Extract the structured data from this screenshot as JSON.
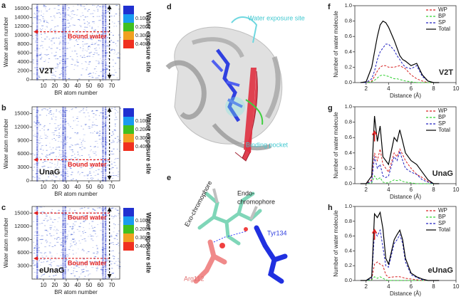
{
  "chart_data": [
    {
      "type": "heatmap",
      "label": "a",
      "name": "V2T",
      "xlabel": "BR atom number",
      "ylabel": "Water atom number",
      "xlim": [
        0,
        77
      ],
      "xticks": [
        10,
        20,
        30,
        40,
        50,
        60,
        70
      ],
      "ylim": [
        0,
        17000
      ],
      "yticks": [
        0,
        2000,
        4000,
        6000,
        8000,
        10000,
        12000,
        14000,
        16000
      ],
      "colorbar": {
        "labels": [
          "0.1000",
          "0.2000",
          "0.3000",
          "0.4000"
        ],
        "colors": [
          "#2030d0",
          "#1a9cf0",
          "#40c020",
          "#f0a020",
          "#f03020"
        ]
      },
      "bound_water": [
        {
          "label": "Bound water",
          "y": 10800
        }
      ],
      "exposure": {
        "label": "Water exposure site",
        "x": 68
      }
    },
    {
      "type": "heatmap",
      "label": "b",
      "name": "UnaG",
      "xlabel": "BR atom number",
      "ylabel": "Water atom number",
      "xlim": [
        0,
        77
      ],
      "xticks": [
        10,
        20,
        30,
        40,
        50,
        60,
        70
      ],
      "ylim": [
        0,
        16500
      ],
      "yticks": [
        0,
        3000,
        6000,
        9000,
        12000,
        15000
      ],
      "colorbar": {
        "labels": [
          "0.1000",
          "0.2000",
          "0.3000",
          "0.4000"
        ],
        "colors": [
          "#2030d0",
          "#1a9cf0",
          "#40c020",
          "#f0a020",
          "#f03020"
        ]
      },
      "bound_water": [
        {
          "label": "Bound water",
          "y": 4700
        }
      ],
      "exposure": {
        "label": "Water exposure site",
        "x": 68
      }
    },
    {
      "type": "heatmap",
      "label": "c",
      "name": "eUnaG",
      "xlabel": "BR atom number",
      "ylabel": "Water atom number",
      "xlim": [
        0,
        77
      ],
      "xticks": [
        10,
        20,
        30,
        40,
        50,
        60,
        70
      ],
      "ylim": [
        0,
        16500
      ],
      "yticks": [
        3000,
        6000,
        9000,
        12000,
        15000
      ],
      "colorbar": {
        "labels": [
          "0.1000",
          "0.2000",
          "0.3000",
          "0.4000"
        ],
        "colors": [
          "#2030d0",
          "#1a9cf0",
          "#40c020",
          "#f0a020",
          "#f03020"
        ]
      },
      "bound_water": [
        {
          "label": "Bound water",
          "y": 15000
        },
        {
          "label": "Bound water",
          "y": 4700
        }
      ],
      "exposure": {
        "label": "Water exposure site",
        "x": 68
      }
    },
    {
      "type": "line",
      "label": "f",
      "name": "V2T",
      "xlabel": "Distance (Å)",
      "ylabel": "Number of water molecule",
      "xlim": [
        1,
        10
      ],
      "xticks": [
        2,
        4,
        6,
        8,
        10
      ],
      "ylim": [
        0,
        1
      ],
      "yticks": [
        {
          "value": 0,
          "label": "0.0"
        },
        0.2,
        0.4,
        0.6,
        0.8,
        {
          "value": 1,
          "label": "1.0"
        }
      ],
      "x": [
        1.5,
        2,
        2.5,
        2.75,
        3,
        3.25,
        3.5,
        3.75,
        4,
        4.5,
        4.75,
        5,
        5.25,
        5.5,
        6,
        6.5,
        7,
        7.5,
        8,
        8.5
      ],
      "series": [
        {
          "name": "WP",
          "color": "#d62020",
          "values": [
            0,
            0,
            0.02,
            0.08,
            0.15,
            0.2,
            0.22,
            0.22,
            0.2,
            0.2,
            0.21,
            0.22,
            0.2,
            0.18,
            0.1,
            0.05,
            0.02,
            0,
            0,
            0
          ]
        },
        {
          "name": "BP",
          "color": "#30d030",
          "values": [
            0,
            0,
            0.01,
            0.03,
            0.06,
            0.09,
            0.1,
            0.09,
            0.08,
            0.05,
            0.05,
            0.04,
            0.03,
            0.02,
            0.01,
            0,
            0,
            0,
            0,
            0
          ]
        },
        {
          "name": "SP",
          "color": "#2020c0",
          "values": [
            0,
            0,
            0.05,
            0.15,
            0.3,
            0.4,
            0.45,
            0.5,
            0.5,
            0.42,
            0.35,
            0.3,
            0.24,
            0.2,
            0.18,
            0.22,
            0.08,
            0.02,
            0,
            0
          ]
        },
        {
          "name": "Total",
          "color": "#000000",
          "values": [
            0,
            0.01,
            0.2,
            0.4,
            0.6,
            0.75,
            0.8,
            0.78,
            0.72,
            0.55,
            0.45,
            0.35,
            0.3,
            0.28,
            0.22,
            0.25,
            0.1,
            0.02,
            0,
            0
          ]
        }
      ]
    },
    {
      "type": "line",
      "label": "g",
      "name": "UnaG",
      "xlabel": "Distance (Å)",
      "ylabel": "Number of water molecule",
      "xlim": [
        1,
        10
      ],
      "xticks": [
        2,
        4,
        6,
        8,
        10
      ],
      "ylim": [
        0,
        1
      ],
      "yticks": [
        {
          "value": 0,
          "label": "0.0"
        },
        0.2,
        0.4,
        0.6,
        0.8,
        {
          "value": 1,
          "label": "1.0"
        }
      ],
      "x": [
        1.5,
        2,
        2.5,
        2.75,
        3,
        3.25,
        3.5,
        3.75,
        4,
        4.5,
        4.75,
        5,
        5.25,
        5.5,
        6,
        6.5,
        7,
        7.5,
        8,
        8.5
      ],
      "series": [
        {
          "name": "WP",
          "color": "#d62020",
          "values": [
            0,
            0,
            0.05,
            0.4,
            0.3,
            0.45,
            0.25,
            0.2,
            0.15,
            0.4,
            0.35,
            0.45,
            0.38,
            0.3,
            0.2,
            0.12,
            0.08,
            0.03,
            0,
            0
          ]
        },
        {
          "name": "BP",
          "color": "#30d030",
          "values": [
            0,
            0,
            0.01,
            0.1,
            0.05,
            0.08,
            0.02,
            0.01,
            0.01,
            0.05,
            0.04,
            0.05,
            0.03,
            0.02,
            0.01,
            0,
            0,
            0,
            0,
            0
          ]
        },
        {
          "name": "SP",
          "color": "#2020c0",
          "values": [
            0,
            0,
            0.03,
            0.35,
            0.2,
            0.25,
            0.1,
            0.08,
            0.1,
            0.35,
            0.3,
            0.42,
            0.3,
            0.2,
            0.15,
            0.12,
            0.05,
            0.02,
            0,
            0
          ]
        },
        {
          "name": "Total",
          "color": "#000000",
          "values": [
            0,
            0,
            0.1,
            0.88,
            0.55,
            0.75,
            0.35,
            0.3,
            0.25,
            0.6,
            0.55,
            0.7,
            0.55,
            0.4,
            0.3,
            0.25,
            0.15,
            0.05,
            0,
            0
          ]
        }
      ]
    },
    {
      "type": "line",
      "label": "h",
      "name": "eUnaG",
      "xlabel": "Distance (Å)",
      "ylabel": "Number of water molecule",
      "xlim": [
        1,
        10
      ],
      "xticks": [
        2,
        4,
        6,
        8,
        10
      ],
      "ylim": [
        0,
        1
      ],
      "yticks": [
        {
          "value": 0,
          "label": "0.0"
        },
        0.2,
        0.4,
        0.6,
        0.8,
        {
          "value": 1,
          "label": "1.0"
        }
      ],
      "x": [
        1.5,
        2,
        2.5,
        2.75,
        3,
        3.25,
        3.5,
        3.75,
        4,
        4.5,
        4.75,
        5,
        5.25,
        5.5,
        6,
        6.5,
        7,
        7.5,
        8,
        8.5
      ],
      "series": [
        {
          "name": "WP",
          "color": "#d62020",
          "values": [
            0,
            0,
            0.02,
            0.22,
            0.25,
            0.22,
            0.2,
            0.08,
            0.04,
            0.05,
            0.05,
            0.05,
            0.04,
            0.03,
            0.02,
            0.01,
            0,
            0,
            0,
            0
          ]
        },
        {
          "name": "BP",
          "color": "#30d030",
          "values": [
            0,
            0,
            0.01,
            0.05,
            0.03,
            0.05,
            0.03,
            0.01,
            0,
            0,
            0,
            0,
            0,
            0,
            0,
            0,
            0,
            0,
            0,
            0
          ]
        },
        {
          "name": "SP",
          "color": "#2020c0",
          "values": [
            0,
            0,
            0.03,
            0.65,
            0.6,
            0.68,
            0.45,
            0.2,
            0.18,
            0.5,
            0.55,
            0.62,
            0.5,
            0.25,
            0.08,
            0.04,
            0.01,
            0,
            0,
            0
          ]
        },
        {
          "name": "Total",
          "color": "#000000",
          "values": [
            0,
            0,
            0.05,
            0.9,
            0.85,
            0.92,
            0.7,
            0.3,
            0.22,
            0.55,
            0.62,
            0.68,
            0.55,
            0.3,
            0.1,
            0.05,
            0.02,
            0,
            0,
            0
          ]
        }
      ]
    }
  ],
  "structure_d": {
    "label": "d",
    "exposure": "Water exposure site",
    "pocket": "Binding pocket"
  },
  "structure_e": {
    "label": "e",
    "exo": "Exo-chromophore",
    "endo": [
      "Endo-",
      "chromophore"
    ],
    "tyr": "Tyr134",
    "arg": "Arg112"
  }
}
